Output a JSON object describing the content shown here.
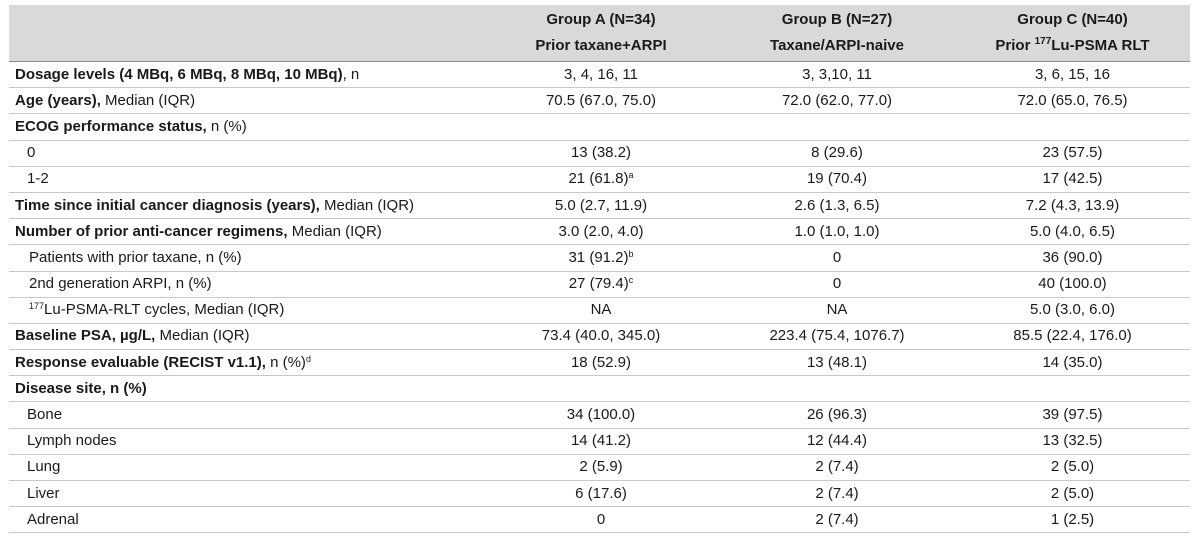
{
  "header": {
    "group_a_title": "Group A (N=34)",
    "group_a_sub": "Prior taxane+ARPI",
    "group_b_title": "Group B (N=27)",
    "group_b_sub": "Taxane/ARPI-naive",
    "group_c_title": "Group C (N=40)",
    "group_c_sub_prefix": "Prior ",
    "group_c_sub_sup": "177",
    "group_c_sub_suffix": "Lu-PSMA RLT"
  },
  "rows": {
    "dosage": {
      "bold": "Dosage levels (4 MBq, 6 MBq, 8 MBq, 10 MBq)",
      "rest": ", n",
      "a": "3, 4, 16, 11",
      "b": "3, 3,10, 11",
      "c": "3, 6, 15, 16"
    },
    "age": {
      "bold": "Age (years),",
      "rest": " Median (IQR)",
      "a": "70.5 (67.0, 75.0)",
      "b": "72.0 (62.0, 77.0)",
      "c": "72.0 (65.0, 76.5)"
    },
    "ecog": {
      "bold": "ECOG performance status,",
      "rest": " n (%)"
    },
    "ecog0": {
      "label": "0",
      "a": "13 (38.2)",
      "b": "8 (29.6)",
      "c": "23 (57.5)"
    },
    "ecog12": {
      "label": "1-2",
      "a": "21 (61.8)",
      "a_sup": "a",
      "b": "19 (70.4)",
      "c": "17 (42.5)"
    },
    "time": {
      "bold": "Time since initial cancer diagnosis (years),",
      "rest": " Median (IQR)",
      "a": "5.0 (2.7, 11.9)",
      "b": "2.6 (1.3, 6.5)",
      "c": "7.2 (4.3, 13.9)"
    },
    "regimens": {
      "bold": "Number of prior anti-cancer regimens,",
      "rest": " Median (IQR)",
      "a": "3.0 (2.0, 4.0)",
      "b": "1.0 (1.0, 1.0)",
      "c": "5.0 (4.0, 6.5)"
    },
    "taxane": {
      "label": "Patients with prior taxane, n (%)",
      "a": "31 (91.2)",
      "a_sup": "b",
      "b": "0",
      "c": "36 (90.0)"
    },
    "arpi": {
      "label": "2nd generation ARPI, n (%)",
      "a": "27 (79.4)",
      "a_sup": "c",
      "b": "0",
      "c": "40 (100.0)"
    },
    "rlt": {
      "label_sup": "177",
      "label": "Lu-PSMA-RLT cycles, Median (IQR)",
      "a": "NA",
      "b": "NA",
      "c": "5.0 (3.0, 6.0)"
    },
    "psa": {
      "bold": "Baseline PSA, µg/L,",
      "rest": " Median (IQR)",
      "a": "73.4 (40.0, 345.0)",
      "b": "223.4 (75.4, 1076.7)",
      "c": "85.5 (22.4, 176.0)"
    },
    "recist": {
      "bold": "Response evaluable (RECIST v1.1),",
      "rest": " n (%)",
      "rest_sup": "d",
      "a": "18 (52.9)",
      "b": "13 (48.1)",
      "c": "14 (35.0)"
    },
    "site": {
      "bold": "Disease site, n (%)"
    },
    "bone": {
      "label": "Bone",
      "a": "34 (100.0)",
      "b": "26 (96.3)",
      "c": "39 (97.5)"
    },
    "lymph": {
      "label": "Lymph nodes",
      "a": "14 (41.2)",
      "b": "12 (44.4)",
      "c": "13 (32.5)"
    },
    "lung": {
      "label": "Lung",
      "a": "2 (5.9)",
      "b": "2 (7.4)",
      "c": "2 (5.0)"
    },
    "liver": {
      "label": "Liver",
      "a": "6 (17.6)",
      "b": "2 (7.4)",
      "c": "2 (5.0)"
    },
    "adrenal": {
      "label": "Adrenal",
      "a": "0",
      "b": "2 (7.4)",
      "c": "1 (2.5)"
    }
  }
}
